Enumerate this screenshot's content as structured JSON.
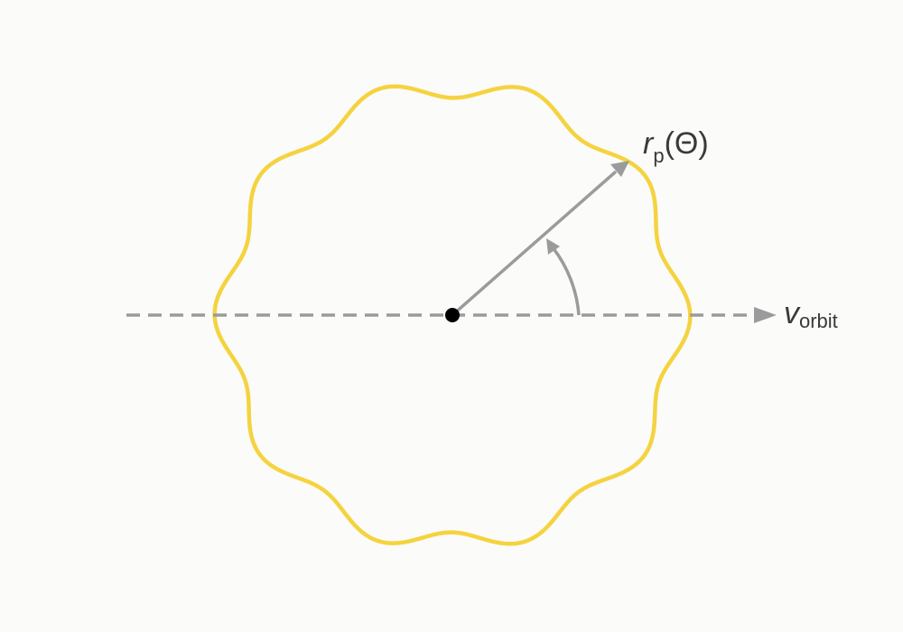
{
  "labels": {
    "radius_symbol": "r",
    "radius_subscript": "p",
    "radius_argument": "(Θ)",
    "velocity_symbol": "v",
    "velocity_subscript": "orbit"
  },
  "colors": {
    "background": "#fbfbf9",
    "outline": "#f5d33f",
    "arrows": "#9b9b9b",
    "center_dot": "#000000",
    "label_text": "#3a3a3a"
  },
  "shape": {
    "lobes": 10,
    "ripple_fraction": 0.045
  }
}
